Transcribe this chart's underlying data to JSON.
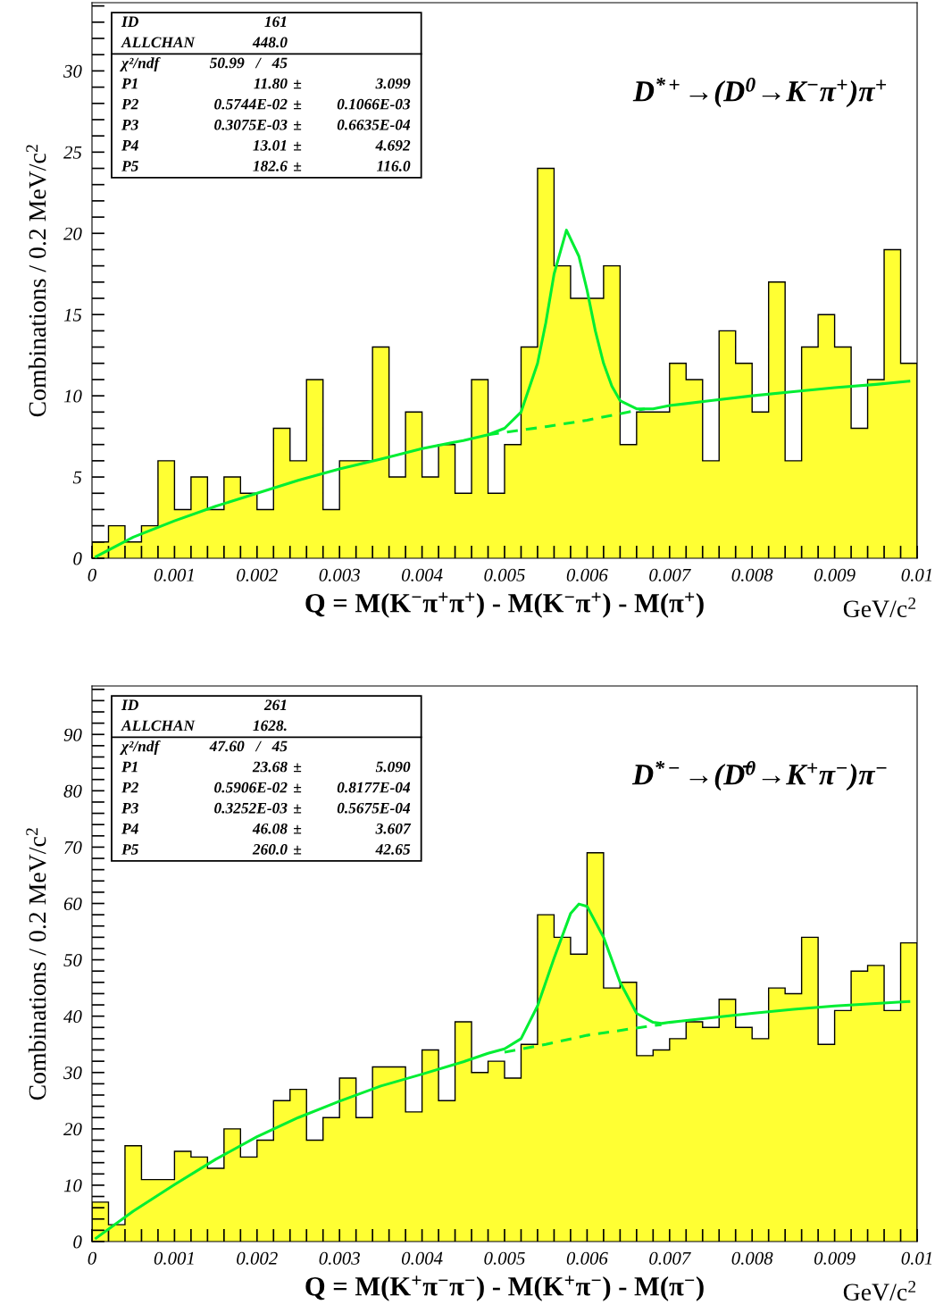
{
  "chart_data": [
    {
      "type": "histogram",
      "xlabel": "Q = M(K$^{−}$π$^{+}$π$^{+}$) - M(K$^{−}$π$^{+}$) - M(π$^{+}$)",
      "ylabel": "Combinations / 0.2 MeV/c$^{2}$",
      "bins": [
        0,
        0.0002,
        0.0004,
        0.0006,
        0.0008,
        0.001,
        0.0012,
        0.0014,
        0.0016,
        0.0018,
        0.002,
        0.0022,
        0.0024,
        0.0026,
        0.0028,
        0.003,
        0.0032,
        0.0034,
        0.0036,
        0.0038,
        0.004,
        0.0042,
        0.0044,
        0.0046,
        0.0048,
        0.005,
        0.0052,
        0.0054,
        0.0056,
        0.0058,
        0.006,
        0.0062,
        0.0064,
        0.0066,
        0.0068,
        0.007,
        0.0072,
        0.0074,
        0.0076,
        0.0078,
        0.008,
        0.0082,
        0.0084,
        0.0086,
        0.0088,
        0.009,
        0.0092,
        0.0094,
        0.0096,
        0.0098,
        0.01
      ],
      "series": [
        {
          "type": "histogram",
          "color": "#ffff33",
          "values": [
            1,
            2,
            1,
            2,
            6,
            3,
            5,
            3,
            5,
            4,
            3,
            8,
            6,
            11,
            3,
            6,
            6,
            13,
            5,
            9,
            5,
            7,
            4,
            11,
            4,
            7,
            13,
            24,
            18,
            16,
            16,
            18,
            7,
            9,
            9,
            12,
            11,
            6,
            14,
            12,
            9,
            17,
            6,
            13,
            15,
            13,
            8,
            11,
            19,
            12
          ]
        },
        {
          "type": "line",
          "color": "#00ee33",
          "line_style": "solid",
          "x": [
            5e-05,
            0.0005,
            0.001,
            0.0015,
            0.002,
            0.0025,
            0.003,
            0.0035,
            0.004,
            0.0045,
            0.0048,
            0.005,
            0.0052,
            0.0054,
            0.0055,
            0.0056,
            0.00575,
            0.0059,
            0.006,
            0.0061,
            0.0062,
            0.0063,
            0.0064,
            0.0066,
            0.0068,
            0.007,
            0.0075,
            0.008,
            0.0085,
            0.009,
            0.0095,
            0.0099
          ],
          "values": [
            0.1,
            1.3,
            2.3,
            3.2,
            4.0,
            4.8,
            5.5,
            6.1,
            6.75,
            7.25,
            7.6,
            8.0,
            9.0,
            12.0,
            14.5,
            17.5,
            20.2,
            18.6,
            16.5,
            14.0,
            12.0,
            10.6,
            9.7,
            9.2,
            9.2,
            9.4,
            9.7,
            10.0,
            10.25,
            10.5,
            10.7,
            10.9
          ]
        },
        {
          "type": "line",
          "color": "#00ee33",
          "line_style": "dashed",
          "x": [
            0.0048,
            0.0055,
            0.006,
            0.0067
          ],
          "values": [
            7.6,
            8.1,
            8.5,
            9.2
          ]
        }
      ],
      "xlim": [
        0,
        0.01
      ],
      "ylim": [
        0,
        34.2
      ],
      "xticks": [
        0,
        {
          "value": 0.0002,
          "label": null
        },
        {
          "value": 0.0004,
          "label": null
        },
        {
          "value": 0.0006,
          "label": null
        },
        {
          "value": 0.0008,
          "label": null
        },
        0.001,
        {
          "value": 0.0012,
          "label": null
        },
        {
          "value": 0.0014,
          "label": null
        },
        {
          "value": 0.0016,
          "label": null
        },
        {
          "value": 0.0018,
          "label": null
        },
        0.002,
        {
          "value": 0.0022,
          "label": null
        },
        {
          "value": 0.0024,
          "label": null
        },
        {
          "value": 0.0026,
          "label": null
        },
        {
          "value": 0.0028,
          "label": null
        },
        0.003,
        {
          "value": 0.0032,
          "label": null
        },
        {
          "value": 0.0034,
          "label": null
        },
        {
          "value": 0.0036,
          "label": null
        },
        {
          "value": 0.0038,
          "label": null
        },
        0.004,
        {
          "value": 0.0042,
          "label": null
        },
        {
          "value": 0.0044,
          "label": null
        },
        {
          "value": 0.0046,
          "label": null
        },
        {
          "value": 0.0048,
          "label": null
        },
        0.005,
        {
          "value": 0.0052,
          "label": null
        },
        {
          "value": 0.0054,
          "label": null
        },
        {
          "value": 0.0056,
          "label": null
        },
        {
          "value": 0.0058,
          "label": null
        },
        0.006,
        {
          "value": 0.0062,
          "label": null
        },
        {
          "value": 0.0064,
          "label": null
        },
        {
          "value": 0.0066,
          "label": null
        },
        {
          "value": 0.0068,
          "label": null
        },
        0.007,
        {
          "value": 0.0072,
          "label": null
        },
        {
          "value": 0.0074,
          "label": null
        },
        {
          "value": 0.0076,
          "label": null
        },
        {
          "value": 0.0078,
          "label": null
        },
        0.008,
        {
          "value": 0.0082,
          "label": null
        },
        {
          "value": 0.0084,
          "label": null
        },
        {
          "value": 0.0086,
          "label": null
        },
        {
          "value": 0.0088,
          "label": null
        },
        0.009,
        {
          "value": 0.0092,
          "label": null
        },
        {
          "value": 0.0094,
          "label": null
        },
        {
          "value": 0.0096,
          "label": null
        },
        {
          "value": 0.0098,
          "label": null
        },
        0.01
      ],
      "yticks": [
        0,
        {
          "value": 1,
          "label": null
        },
        {
          "value": 2,
          "label": null
        },
        {
          "value": 3,
          "label": null
        },
        {
          "value": 4,
          "label": null
        },
        5,
        {
          "value": 6,
          "label": null
        },
        {
          "value": 7,
          "label": null
        },
        {
          "value": 8,
          "label": null
        },
        {
          "value": 9,
          "label": null
        },
        10,
        {
          "value": 11,
          "label": null
        },
        {
          "value": 12,
          "label": null
        },
        {
          "value": 13,
          "label": null
        },
        {
          "value": 14,
          "label": null
        },
        15,
        {
          "value": 16,
          "label": null
        },
        {
          "value": 17,
          "label": null
        },
        {
          "value": 18,
          "label": null
        },
        {
          "value": 19,
          "label": null
        },
        20,
        {
          "value": 21,
          "label": null
        },
        {
          "value": 22,
          "label": null
        },
        {
          "value": 23,
          "label": null
        },
        {
          "value": 24,
          "label": null
        },
        25,
        {
          "value": 26,
          "label": null
        },
        {
          "value": 27,
          "label": null
        },
        {
          "value": 28,
          "label": null
        },
        {
          "value": 29,
          "label": null
        },
        30,
        {
          "value": 31,
          "label": null
        },
        {
          "value": 32,
          "label": null
        },
        {
          "value": 33,
          "label": null
        },
        {
          "value": 34,
          "label": null
        }
      ],
      "grid": false,
      "legend": false,
      "annotations": [
        "D$^{*+}$→(D$^{0}$→K$^{−}$π$^{+}$)π$^{+}$",
        "GeV/c$^{2}$",
        "ID\t161",
        "ALLCHAN\t448.0",
        "χ²/ndf\t50.99   /   45",
        "P1\t11.80\t±\t3.099",
        "P2\t0.5744E-02\t±\t0.1066E-03",
        "P3\t0.3075E-03\t±\t0.6635E-04",
        "P4\t13.01\t±\t4.692",
        "P5\t182.6\t±\t116.0"
      ]
    },
    {
      "type": "histogram",
      "xlabel": "Q = M(K$^{+}$π$^{−}$π$^{−}$) - M(K$^{+}$π$^{−}$) - M(π$^{−}$)",
      "ylabel": "Combinations / 0.2 MeV/c$^{2}$",
      "bins": [
        0,
        0.0002,
        0.0004,
        0.0006,
        0.0008,
        0.001,
        0.0012,
        0.0014,
        0.0016,
        0.0018,
        0.002,
        0.0022,
        0.0024,
        0.0026,
        0.0028,
        0.003,
        0.0032,
        0.0034,
        0.0036,
        0.0038,
        0.004,
        0.0042,
        0.0044,
        0.0046,
        0.0048,
        0.005,
        0.0052,
        0.0054,
        0.0056,
        0.0058,
        0.006,
        0.0062,
        0.0064,
        0.0066,
        0.0068,
        0.007,
        0.0072,
        0.0074,
        0.0076,
        0.0078,
        0.008,
        0.0082,
        0.0084,
        0.0086,
        0.0088,
        0.009,
        0.0092,
        0.0094,
        0.0096,
        0.0098,
        0.01
      ],
      "series": [
        {
          "type": "histogram",
          "color": "#ffff33",
          "values": [
            7,
            3,
            17,
            11,
            11,
            16,
            15,
            13,
            20,
            15,
            18,
            25,
            27,
            18,
            22,
            29,
            22,
            31,
            31,
            23,
            34,
            25,
            39,
            30,
            32,
            29,
            35,
            58,
            54,
            51,
            69,
            45,
            46,
            33,
            34,
            36,
            39,
            38,
            43,
            38,
            36,
            45,
            44,
            54,
            35,
            41,
            48,
            49,
            41,
            53
          ]
        },
        {
          "type": "line",
          "color": "#00ee33",
          "line_style": "solid",
          "x": [
            5e-05,
            0.0005,
            0.001,
            0.0015,
            0.002,
            0.0025,
            0.003,
            0.0035,
            0.004,
            0.0045,
            0.0048,
            0.005,
            0.0052,
            0.0054,
            0.0056,
            0.0058,
            0.0059,
            0.006,
            0.0062,
            0.0064,
            0.0066,
            0.0068,
            0.0069,
            0.007,
            0.0075,
            0.008,
            0.0085,
            0.009,
            0.0099
          ],
          "values": [
            0.6,
            5.4,
            10.1,
            14.6,
            18.6,
            22,
            24.9,
            27.6,
            29.7,
            31.9,
            33.4,
            34.2,
            36,
            41.8,
            50.3,
            58.2,
            59.9,
            59.5,
            54,
            46,
            40.5,
            38.9,
            38.7,
            38.9,
            39.7,
            40.5,
            41.2,
            41.8,
            42.6
          ]
        },
        {
          "type": "line",
          "color": "#00ee33",
          "line_style": "dashed",
          "x": [
            0.005,
            0.0055,
            0.006,
            0.0066,
            0.0069
          ],
          "values": [
            33.6,
            35.0,
            36.6,
            37.9,
            38.5
          ]
        }
      ],
      "xlim": [
        0,
        0.01
      ],
      "ylim": [
        0,
        98.6
      ],
      "xticks": [
        0,
        {
          "value": 0.0002,
          "label": null
        },
        {
          "value": 0.0004,
          "label": null
        },
        {
          "value": 0.0006,
          "label": null
        },
        {
          "value": 0.0008,
          "label": null
        },
        0.001,
        {
          "value": 0.0012,
          "label": null
        },
        {
          "value": 0.0014,
          "label": null
        },
        {
          "value": 0.0016,
          "label": null
        },
        {
          "value": 0.0018,
          "label": null
        },
        0.002,
        {
          "value": 0.0022,
          "label": null
        },
        {
          "value": 0.0024,
          "label": null
        },
        {
          "value": 0.0026,
          "label": null
        },
        {
          "value": 0.0028,
          "label": null
        },
        0.003,
        {
          "value": 0.0032,
          "label": null
        },
        {
          "value": 0.0034,
          "label": null
        },
        {
          "value": 0.0036,
          "label": null
        },
        {
          "value": 0.0038,
          "label": null
        },
        0.004,
        {
          "value": 0.0042,
          "label": null
        },
        {
          "value": 0.0044,
          "label": null
        },
        {
          "value": 0.0046,
          "label": null
        },
        {
          "value": 0.0048,
          "label": null
        },
        0.005,
        {
          "value": 0.0052,
          "label": null
        },
        {
          "value": 0.0054,
          "label": null
        },
        {
          "value": 0.0056,
          "label": null
        },
        {
          "value": 0.0058,
          "label": null
        },
        0.006,
        {
          "value": 0.0062,
          "label": null
        },
        {
          "value": 0.0064,
          "label": null
        },
        {
          "value": 0.0066,
          "label": null
        },
        {
          "value": 0.0068,
          "label": null
        },
        0.007,
        {
          "value": 0.0072,
          "label": null
        },
        {
          "value": 0.0074,
          "label": null
        },
        {
          "value": 0.0076,
          "label": null
        },
        {
          "value": 0.0078,
          "label": null
        },
        0.008,
        {
          "value": 0.0082,
          "label": null
        },
        {
          "value": 0.0084,
          "label": null
        },
        {
          "value": 0.0086,
          "label": null
        },
        {
          "value": 0.0088,
          "label": null
        },
        0.009,
        {
          "value": 0.0092,
          "label": null
        },
        {
          "value": 0.0094,
          "label": null
        },
        {
          "value": 0.0096,
          "label": null
        },
        {
          "value": 0.0098,
          "label": null
        },
        0.01
      ],
      "yticks": [
        0,
        {
          "value": 2,
          "label": null
        },
        {
          "value": 4,
          "label": null
        },
        {
          "value": 6,
          "label": null
        },
        {
          "value": 8,
          "label": null
        },
        10,
        {
          "value": 12,
          "label": null
        },
        {
          "value": 14,
          "label": null
        },
        {
          "value": 16,
          "label": null
        },
        {
          "value": 18,
          "label": null
        },
        20,
        {
          "value": 22,
          "label": null
        },
        {
          "value": 24,
          "label": null
        },
        {
          "value": 26,
          "label": null
        },
        {
          "value": 28,
          "label": null
        },
        30,
        {
          "value": 32,
          "label": null
        },
        {
          "value": 34,
          "label": null
        },
        {
          "value": 36,
          "label": null
        },
        {
          "value": 38,
          "label": null
        },
        40,
        {
          "value": 42,
          "label": null
        },
        {
          "value": 44,
          "label": null
        },
        {
          "value": 46,
          "label": null
        },
        {
          "value": 48,
          "label": null
        },
        50,
        {
          "value": 52,
          "label": null
        },
        {
          "value": 54,
          "label": null
        },
        {
          "value": 56,
          "label": null
        },
        {
          "value": 58,
          "label": null
        },
        60,
        {
          "value": 62,
          "label": null
        },
        {
          "value": 64,
          "label": null
        },
        {
          "value": 66,
          "label": null
        },
        {
          "value": 68,
          "label": null
        },
        70,
        {
          "value": 72,
          "label": null
        },
        {
          "value": 74,
          "label": null
        },
        {
          "value": 76,
          "label": null
        },
        {
          "value": 78,
          "label": null
        },
        80,
        {
          "value": 82,
          "label": null
        },
        {
          "value": 84,
          "label": null
        },
        {
          "value": 86,
          "label": null
        },
        {
          "value": 88,
          "label": null
        },
        90,
        {
          "value": 92,
          "label": null
        },
        {
          "value": 94,
          "label": null
        },
        {
          "value": 96,
          "label": null
        },
        {
          "value": 98,
          "label": null
        }
      ],
      "grid": false,
      "legend": false,
      "annotations": [
        "D$^{*−}$→(D̄$^{0}$→K$^{+}$π$^{−}$)π$^{−}$",
        "GeV/c$^{2}$",
        "ID\t261",
        "ALLCHAN\t1628.",
        "χ²/ndf\t47.60   /   45",
        "P1\t23.68\t±\t5.090",
        "P2\t0.5906E-02\t±\t0.8177E-04",
        "P3\t0.3252E-03\t±\t0.5675E-04",
        "P4\t46.08\t±\t3.607",
        "P5\t260.0\t±\t42.65"
      ]
    }
  ]
}
